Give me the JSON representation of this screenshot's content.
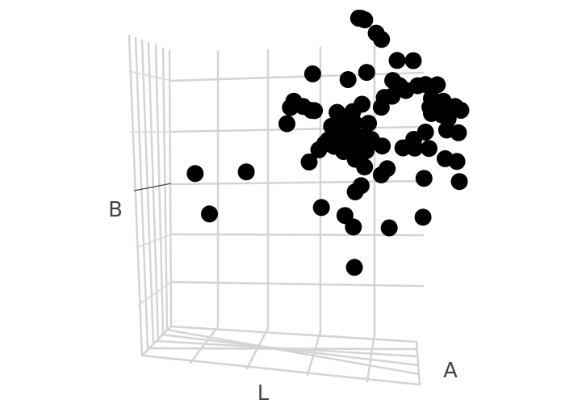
{
  "chart_data": {
    "type": "scatter3d",
    "axes": {
      "x": "L",
      "y": "A",
      "z": "B"
    },
    "ticks_visible": false,
    "grid": true,
    "marker_color": "#000000",
    "points": [
      [
        7.3,
        3.8,
        10.0
      ],
      [
        7.4,
        3.8,
        10.0
      ],
      [
        7.0,
        5.2,
        9.2
      ],
      [
        7.7,
        4.6,
        9.0
      ],
      [
        7.8,
        4.9,
        8.6
      ],
      [
        5.2,
        4.4,
        7.4
      ],
      [
        6.4,
        5.0,
        6.9
      ],
      [
        7.0,
        5.4,
        7.0
      ],
      [
        8.0,
        6.0,
        7.2
      ],
      [
        8.5,
        6.4,
        7.0
      ],
      [
        7.9,
        5.8,
        6.5
      ],
      [
        8.1,
        6.0,
        6.2
      ],
      [
        3.9,
        5.4,
        5.5
      ],
      [
        4.0,
        5.5,
        5.7
      ],
      [
        4.3,
        5.7,
        5.4
      ],
      [
        4.6,
        5.8,
        5.2
      ],
      [
        4.8,
        5.6,
        5.3
      ],
      [
        5.6,
        5.9,
        5.1
      ],
      [
        3.8,
        5.3,
        4.9
      ],
      [
        6.2,
        6.0,
        5.1
      ],
      [
        6.5,
        6.2,
        5.3
      ],
      [
        7.2,
        6.4,
        5.1
      ],
      [
        7.4,
        6.2,
        5.6
      ],
      [
        7.6,
        6.5,
        5.5
      ],
      [
        8.2,
        6.4,
        5.8
      ],
      [
        8.6,
        6.6,
        5.9
      ],
      [
        8.8,
        6.9,
        5.8
      ],
      [
        9.0,
        7.0,
        5.6
      ],
      [
        9.2,
        7.1,
        5.7
      ],
      [
        9.0,
        7.0,
        5.2
      ],
      [
        9.4,
        7.2,
        5.0
      ],
      [
        9.8,
        7.4,
        4.7
      ],
      [
        10.0,
        7.5,
        4.5
      ],
      [
        9.6,
        7.2,
        4.3
      ],
      [
        9.3,
        7.3,
        4.4
      ],
      [
        9.0,
        7.0,
        4.6
      ],
      [
        8.9,
        7.1,
        4.8
      ],
      [
        6.0,
        5.8,
        4.9
      ],
      [
        6.3,
        5.9,
        4.7
      ],
      [
        6.8,
        6.1,
        4.6
      ],
      [
        5.5,
        5.6,
        4.7
      ],
      [
        5.7,
        5.7,
        4.5
      ],
      [
        6.0,
        5.9,
        4.4
      ],
      [
        6.2,
        6.0,
        4.3
      ],
      [
        5.4,
        5.5,
        4.2
      ],
      [
        5.3,
        5.4,
        4.1
      ],
      [
        5.8,
        5.7,
        4.1
      ],
      [
        6.1,
        5.9,
        4.0
      ],
      [
        6.6,
        6.0,
        4.1
      ],
      [
        5.1,
        5.3,
        3.9
      ],
      [
        5.6,
        5.6,
        3.9
      ],
      [
        6.0,
        5.9,
        3.8
      ],
      [
        6.3,
        6.0,
        3.9
      ],
      [
        6.8,
        6.4,
        3.8
      ],
      [
        5.9,
        5.8,
        3.6
      ],
      [
        6.4,
        6.1,
        3.6
      ],
      [
        6.7,
        6.1,
        3.5
      ],
      [
        7.2,
        6.5,
        3.5
      ],
      [
        8.4,
        6.7,
        3.7
      ],
      [
        8.8,
        6.9,
        3.9
      ],
      [
        9.5,
        7.3,
        3.8
      ],
      [
        9.9,
        7.5,
        3.6
      ],
      [
        8.0,
        6.6,
        3.4
      ],
      [
        8.4,
        6.8,
        3.3
      ],
      [
        8.9,
        7.0,
        3.2
      ],
      [
        0.9,
        3.2,
        3.9
      ],
      [
        2.5,
        4.4,
        3.4
      ],
      [
        4.7,
        5.3,
        3.4
      ],
      [
        6.3,
        6.0,
        3.2
      ],
      [
        6.6,
        6.2,
        2.8
      ],
      [
        7.4,
        6.5,
        2.6
      ],
      [
        7.2,
        6.4,
        2.4
      ],
      [
        6.5,
        6.1,
        2.1
      ],
      [
        6.3,
        6.0,
        1.9
      ],
      [
        9.4,
        7.4,
        2.6
      ],
      [
        9.8,
        7.6,
        2.4
      ],
      [
        8.7,
        7.0,
        2.0
      ],
      [
        1.4,
        3.4,
        2.2
      ],
      [
        5.2,
        5.3,
        1.6
      ],
      [
        6.0,
        5.7,
        1.1
      ],
      [
        9.9,
        7.6,
        1.6
      ],
      [
        6.3,
        5.8,
        0.6
      ],
      [
        7.6,
        6.2,
        0.4
      ],
      [
        8.7,
        6.9,
        0.5
      ],
      [
        6.5,
        5.4,
        -0.8
      ]
    ]
  }
}
